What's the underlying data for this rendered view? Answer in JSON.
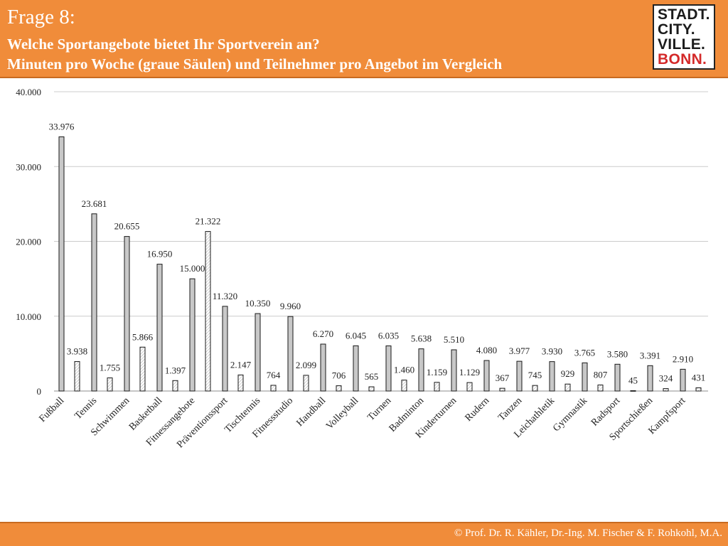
{
  "header": {
    "title": "Frage 8:",
    "subtitle": "Welche Sportangebote bietet Ihr Sportverein an?",
    "subtitle2": "Minuten pro Woche (graue Säulen) und Teilnehmer pro Angebot im Vergleich"
  },
  "logo": {
    "line1": "STADT.",
    "line2": "CITY.",
    "line3": "VILLE.",
    "line4": "BONN."
  },
  "footer": {
    "copyright": "© Prof. Dr. R. Kähler, Dr.-Ing. M. Fischer & F. Rohkohl, M.A."
  },
  "colors": {
    "accent": "#f08c3a",
    "bar_fill": "#c8c8c8",
    "brand_red": "#d42a2a"
  },
  "chart_data": {
    "type": "bar",
    "categories": [
      "Fußball",
      "Tennis",
      "Schwimmen",
      "Basketball",
      "Fitnessangebote",
      "Präventionssport",
      "Tischtennis",
      "Fitnessstudio",
      "Handball",
      "Volleyball",
      "Turnen",
      "Badminton",
      "Kinderturnen",
      "Rudern",
      "Tanzen",
      "Leichathletik",
      "Gymnastik",
      "Radsport",
      "Sportschießen",
      "Kampfsport"
    ],
    "series": [
      {
        "values": [
          33976,
          23681,
          20655,
          16950,
          15000,
          11320,
          10350,
          9960,
          6270,
          6045,
          6035,
          5638,
          5510,
          4080,
          3977,
          3930,
          3765,
          3580,
          3391,
          2910
        ],
        "labels": [
          "33.976",
          "23.681",
          "20.655",
          "16.950",
          "15.000",
          "11.320",
          "10.350",
          "9.960",
          "6.270",
          "6.045",
          "6.035",
          "5.638",
          "5.510",
          "4.080",
          "3.977",
          "3.930",
          "3.765",
          "3.580",
          "3.391",
          "2.910"
        ],
        "style": "grey"
      },
      {
        "values": [
          3938,
          1755,
          5866,
          1397,
          21322,
          2147,
          764,
          2099,
          706,
          565,
          1460,
          1159,
          1129,
          367,
          745,
          929,
          807,
          45,
          324,
          431
        ],
        "labels": [
          "3.938",
          "1.755",
          "5.866",
          "1.397",
          "21.322",
          "2.147",
          "764",
          "2.099",
          "706",
          "565",
          "1.460",
          "1.159",
          "1.129",
          "367",
          "745",
          "929",
          "807",
          "45",
          "324",
          "431"
        ],
        "style": "white-hatched"
      }
    ],
    "yticks": [
      "0",
      "10.000",
      "20.000",
      "30.000",
      "40.000"
    ],
    "ylim": [
      0,
      40000
    ],
    "grid": true
  }
}
